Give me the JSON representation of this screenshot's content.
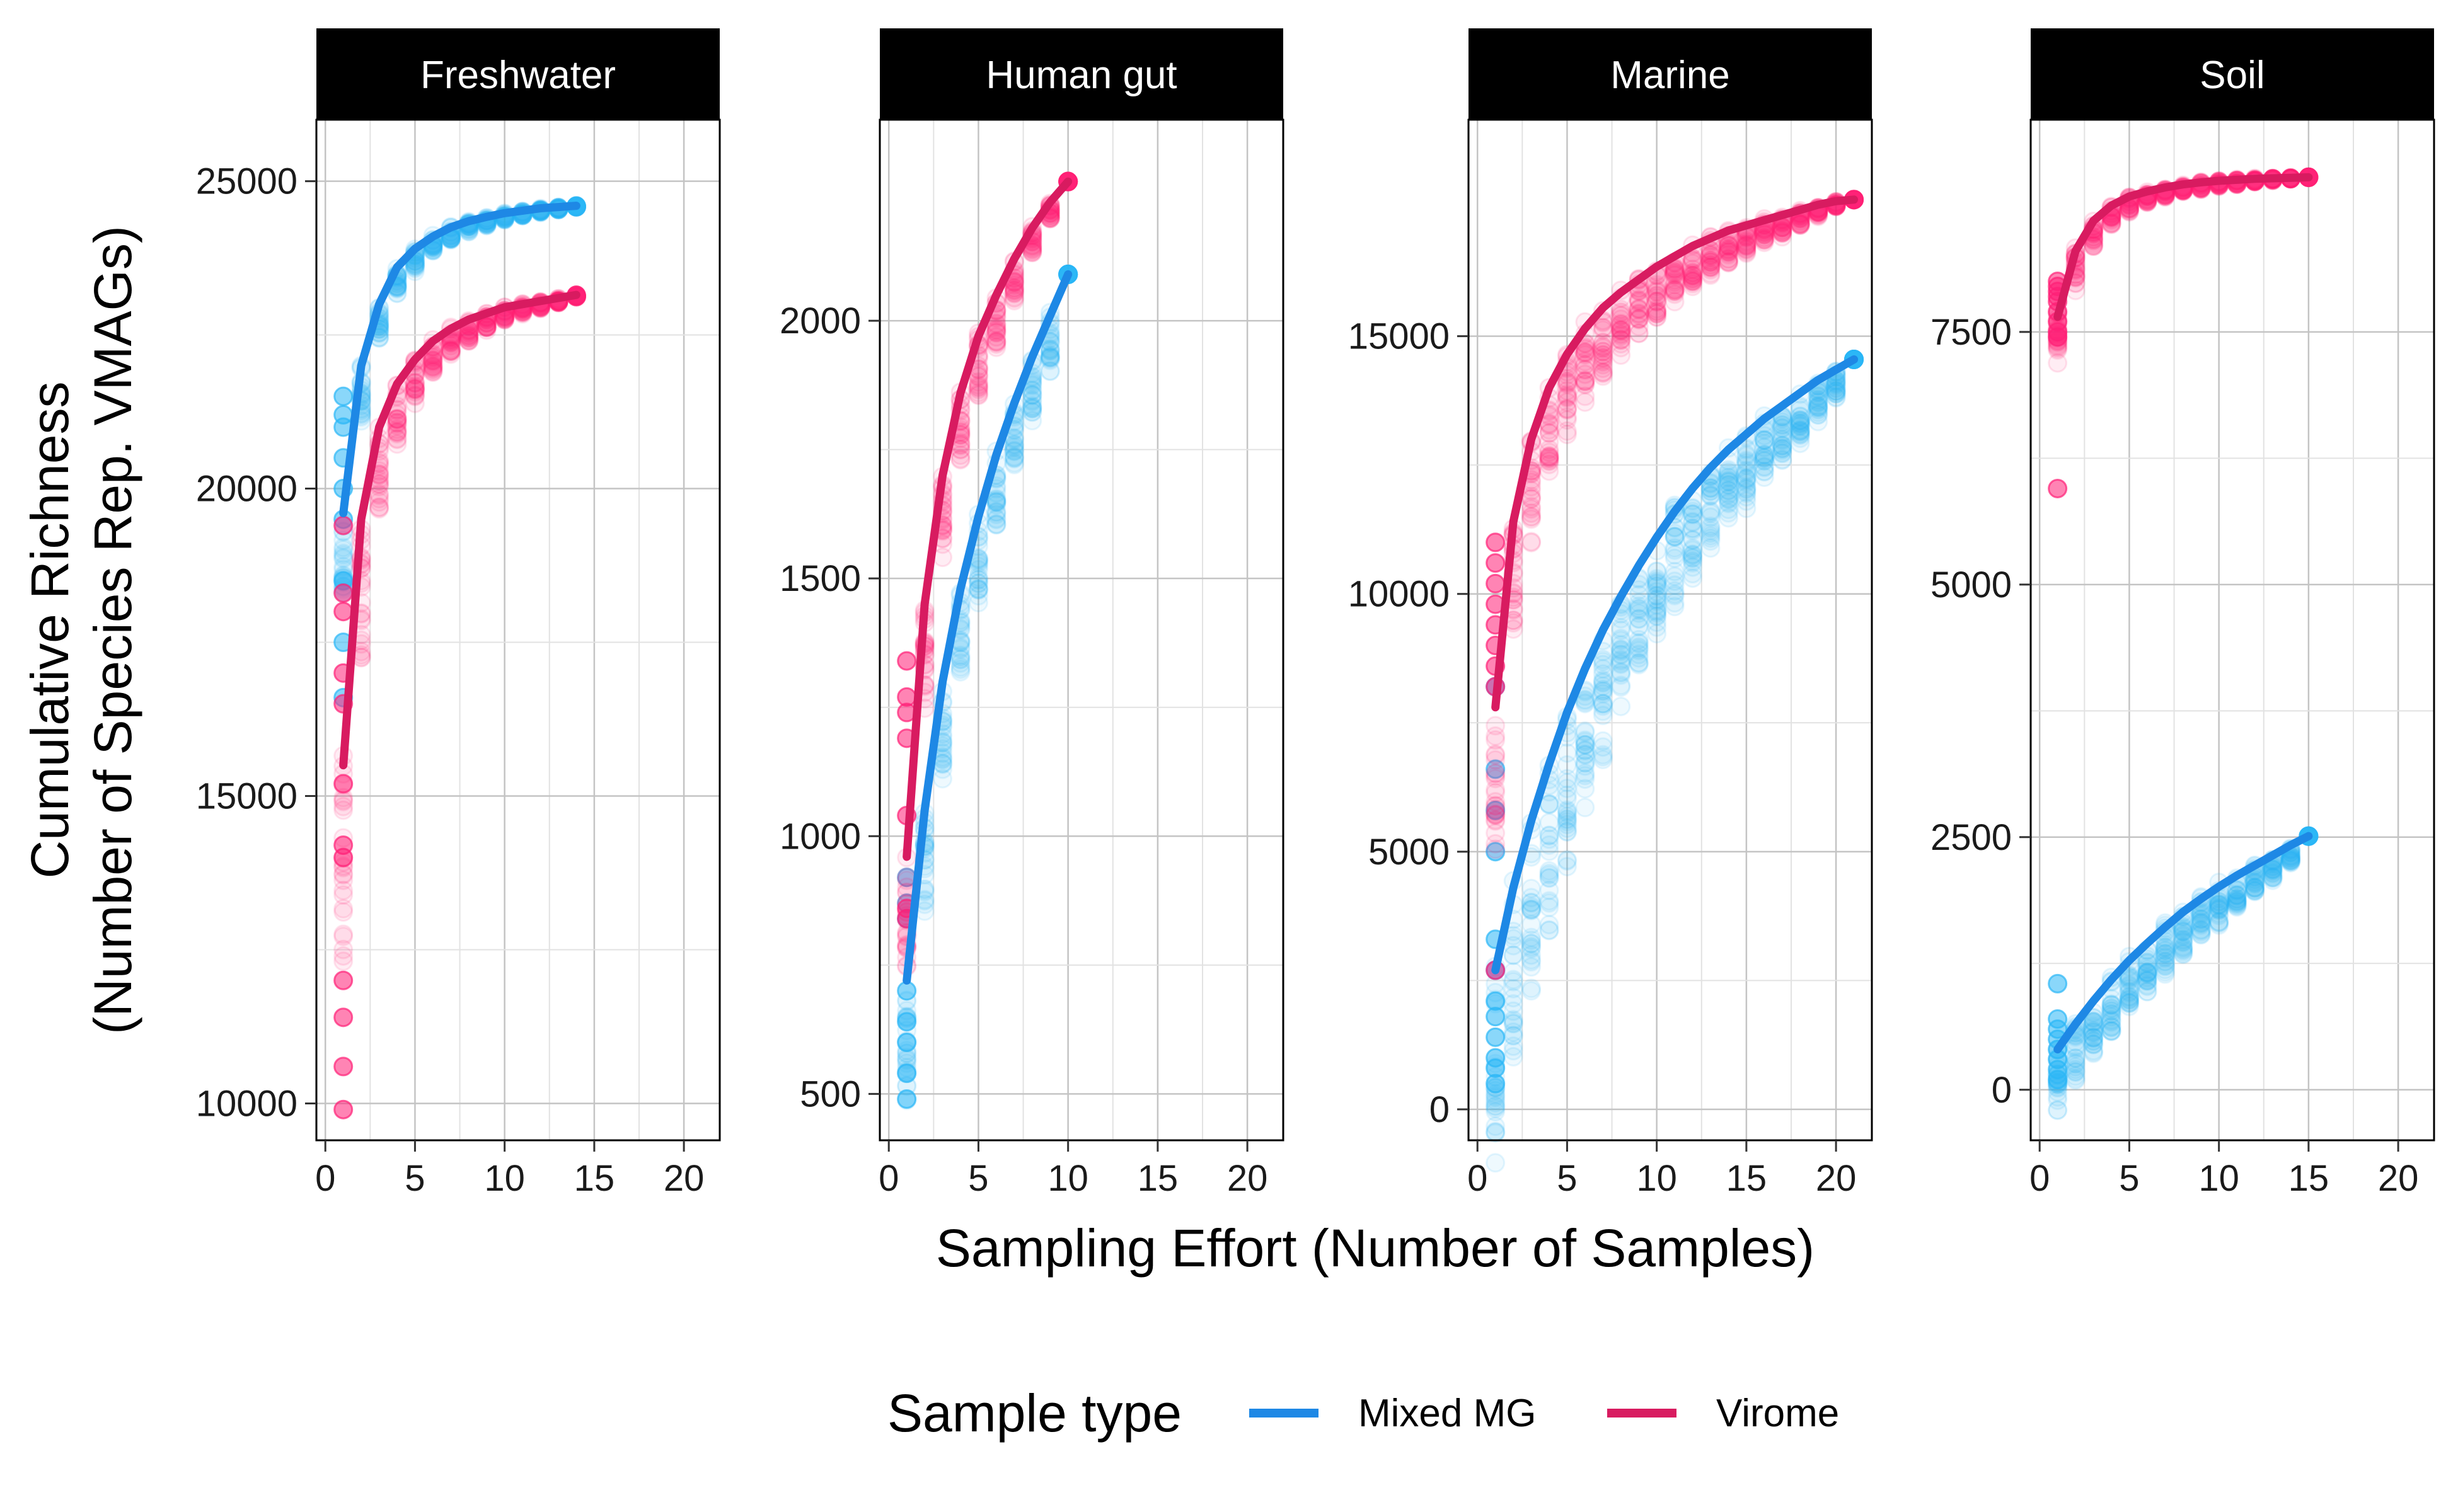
{
  "chart_data": {
    "type": "scatter",
    "subtype": "faceted rarefaction curves with smoothed trend lines",
    "xlabel": "Sampling Effort (Number of Samples)",
    "ylabel_lines": [
      "Cumulative Richness",
      "(Number of Species Rep. VMAGs)"
    ],
    "x_ticks": [
      0,
      5,
      10,
      15,
      20
    ],
    "xlim": [
      -0.5,
      22
    ],
    "grid": true,
    "legend": {
      "title": "Sample type",
      "position": "bottom",
      "entries": [
        {
          "name": "Mixed MG",
          "color": "#1e88e5"
        },
        {
          "name": "Virome",
          "color": "#d81b60"
        }
      ]
    },
    "point_colors": {
      "Mixed MG": "#29b6f6",
      "Virome": "#ff1f76"
    },
    "panels": [
      {
        "title": "Freshwater",
        "ylim": [
          9400,
          26000
        ],
        "y_ticks": [
          10000,
          15000,
          20000,
          25000
        ],
        "series": [
          {
            "name": "Mixed MG",
            "x": [
              1,
              2,
              3,
              4,
              5,
              6,
              7,
              8,
              9,
              10,
              11,
              12,
              13,
              14
            ],
            "y": [
              19600,
              22000,
              23000,
              23600,
              23900,
              24100,
              24250,
              24350,
              24420,
              24480,
              24520,
              24560,
              24580,
              24600
            ],
            "spread": [
              1300,
              900,
              600,
              420,
              320,
              250,
              200,
              160,
              130,
              100,
              80,
              60,
              40,
              20
            ],
            "first_points": [
              21500,
              21200,
              21000,
              20500,
              20000,
              19500,
              18500,
              17500,
              16600
            ]
          },
          {
            "name": "Virome",
            "x": [
              1,
              2,
              3,
              4,
              5,
              6,
              7,
              8,
              9,
              10,
              11,
              12,
              13,
              14
            ],
            "y": [
              15500,
              19500,
              21000,
              21700,
              22100,
              22400,
              22600,
              22750,
              22850,
              22950,
              23000,
              23050,
              23100,
              23150
            ],
            "spread": [
              3000,
              2200,
              1300,
              900,
              650,
              500,
              400,
              320,
              250,
              200,
              150,
              110,
              70,
              30
            ],
            "first_points": [
              19400,
              18300,
              18000,
              17000,
              16500,
              15200,
              14200,
              14000,
              12000,
              11400,
              10600,
              9900
            ]
          }
        ]
      },
      {
        "title": "Human gut",
        "ylim": [
          410,
          2390
        ],
        "y_ticks": [
          500,
          1000,
          1500,
          2000
        ],
        "series": [
          {
            "name": "Mixed MG",
            "x": [
              1,
              2,
              3,
              4,
              5,
              6,
              7,
              8,
              9,
              10
            ],
            "y": [
              720,
              1050,
              1300,
              1480,
              1620,
              1740,
              1840,
              1930,
              2010,
              2090
            ],
            "spread": [
              200,
              180,
              170,
              160,
              150,
              140,
              130,
              120,
              100,
              0
            ],
            "first_points": [
              920,
              870,
              840,
              700,
              640,
              600,
              540,
              490
            ]
          },
          {
            "name": "Virome",
            "x": [
              1,
              2,
              3,
              4,
              5,
              6,
              7,
              8,
              9,
              10
            ],
            "y": [
              960,
              1450,
              1700,
              1860,
              1970,
              2050,
              2120,
              2180,
              2230,
              2270
            ],
            "spread": [
              200,
              180,
              150,
              130,
              110,
              90,
              70,
              50,
              30,
              0
            ],
            "first_points": [
              1340,
              1270,
              1240,
              1190,
              1040,
              860,
              840
            ]
          }
        ]
      },
      {
        "title": "Marine",
        "ylim": [
          -600,
          19200
        ],
        "y_ticks": [
          0,
          5000,
          10000,
          15000
        ],
        "series": [
          {
            "name": "Mixed MG",
            "x": [
              1,
              2,
              3,
              4,
              5,
              6,
              7,
              8,
              9,
              10,
              11,
              12,
              13,
              14,
              15,
              16,
              17,
              18,
              19,
              20,
              21
            ],
            "y": [
              2700,
              4300,
              5600,
              6700,
              7700,
              8550,
              9300,
              9950,
              10550,
              11100,
              11600,
              12050,
              12450,
              12800,
              13100,
              13400,
              13650,
              13900,
              14150,
              14350,
              14550
            ],
            "spread": [
              3500,
              3200,
              3000,
              2800,
              2600,
              2400,
              2200,
              2000,
              1900,
              1800,
              1700,
              1600,
              1500,
              1400,
              1300,
              1200,
              1000,
              900,
              700,
              500,
              0
            ],
            "first_points": [
              8200,
              6600,
              5800,
              5000,
              3300,
              2700,
              2100,
              1800,
              1400,
              1000,
              800,
              500
            ]
          },
          {
            "name": "Virome",
            "x": [
              1,
              2,
              3,
              4,
              5,
              6,
              7,
              8,
              9,
              10,
              11,
              12,
              13,
              14,
              15,
              16,
              17,
              18,
              19,
              20,
              21
            ],
            "y": [
              7800,
              11400,
              13000,
              14000,
              14650,
              15150,
              15550,
              15850,
              16100,
              16350,
              16550,
              16750,
              16900,
              17050,
              17150,
              17250,
              17350,
              17450,
              17550,
              17620,
              17650
            ],
            "spread": [
              2500,
              2100,
              1800,
              1600,
              1400,
              1300,
              1200,
              1100,
              1000,
              900,
              800,
              700,
              650,
              600,
              500,
              450,
              400,
              300,
              200,
              100,
              0
            ],
            "first_points": [
              11000,
              10600,
              10200,
              9800,
              9400,
              9000,
              8600,
              8200,
              2700
            ]
          }
        ]
      },
      {
        "title": "Soil",
        "ylim": [
          -500,
          9600
        ],
        "y_ticks": [
          0,
          2500,
          5000,
          7500
        ],
        "series": [
          {
            "name": "Mixed MG",
            "x": [
              1,
              2,
              3,
              4,
              5,
              6,
              7,
              8,
              9,
              10,
              11,
              12,
              13,
              14,
              15
            ],
            "y": [
              400,
              650,
              880,
              1090,
              1280,
              1450,
              1610,
              1760,
              1890,
              2010,
              2120,
              2220,
              2320,
              2420,
              2510
            ],
            "spread": [
              600,
              550,
              520,
              500,
              480,
              450,
              420,
              400,
              380,
              350,
              320,
              280,
              220,
              150,
              0
            ],
            "first_points": [
              1050,
              700,
              600,
              500,
              400,
              300,
              200,
              100
            ]
          },
          {
            "name": "Virome",
            "x": [
              1,
              2,
              3,
              4,
              5,
              6,
              7,
              8,
              9,
              10,
              11,
              12,
              13,
              14,
              15
            ],
            "y": [
              7650,
              8300,
              8600,
              8750,
              8840,
              8890,
              8930,
              8960,
              8980,
              8995,
              9005,
              9015,
              9020,
              9025,
              9030
            ],
            "spread": [
              400,
              350,
              250,
              180,
              140,
              110,
              90,
              70,
              60,
              50,
              40,
              30,
              20,
              10,
              0
            ],
            "first_points": [
              8000,
              7950,
              7900,
              7850,
              7800,
              7700,
              7600,
              7500,
              7450,
              5950
            ]
          }
        ]
      }
    ]
  }
}
